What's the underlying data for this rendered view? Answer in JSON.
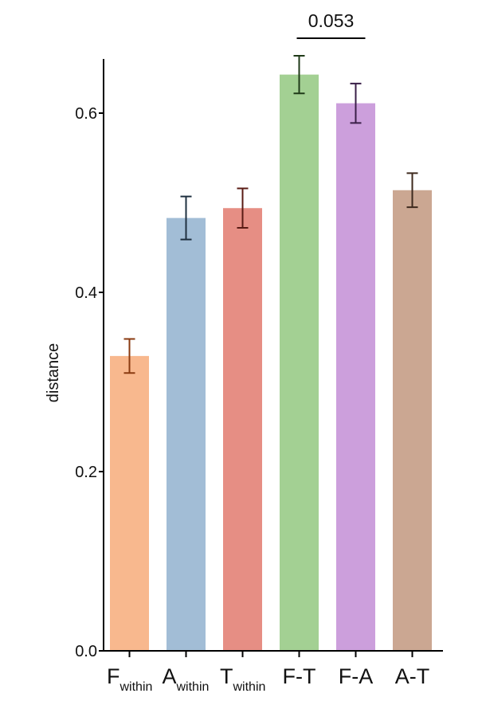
{
  "chart_data": {
    "type": "bar",
    "ylabel": "distance",
    "ylim": [
      0,
      0.66
    ],
    "yticks": [
      0.0,
      0.2,
      0.4,
      0.6
    ],
    "ytick_labels": [
      "0.0",
      "0.2",
      "0.4",
      "0.6"
    ],
    "categories": [
      {
        "main": "F",
        "sub": "within"
      },
      {
        "main": "A",
        "sub": "within"
      },
      {
        "main": "T",
        "sub": "within"
      },
      {
        "main": "F-T",
        "sub": ""
      },
      {
        "main": "F-A",
        "sub": ""
      },
      {
        "main": "A-T",
        "sub": ""
      }
    ],
    "values": [
      0.329,
      0.483,
      0.494,
      0.643,
      0.611,
      0.514
    ],
    "errors": [
      0.019,
      0.024,
      0.022,
      0.021,
      0.022,
      0.019
    ],
    "colors": [
      "#F8B88E",
      "#A2BDD6",
      "#E68E84",
      "#A3D093",
      "#CC9FDC",
      "#CBA792"
    ],
    "error_colors": [
      "#8a3a10",
      "#1f3040",
      "#5a1b14",
      "#1f3a18",
      "#3a1f48",
      "#3e2a1e"
    ],
    "annotation": {
      "text": "0.053",
      "from": 3,
      "to": 4
    }
  }
}
